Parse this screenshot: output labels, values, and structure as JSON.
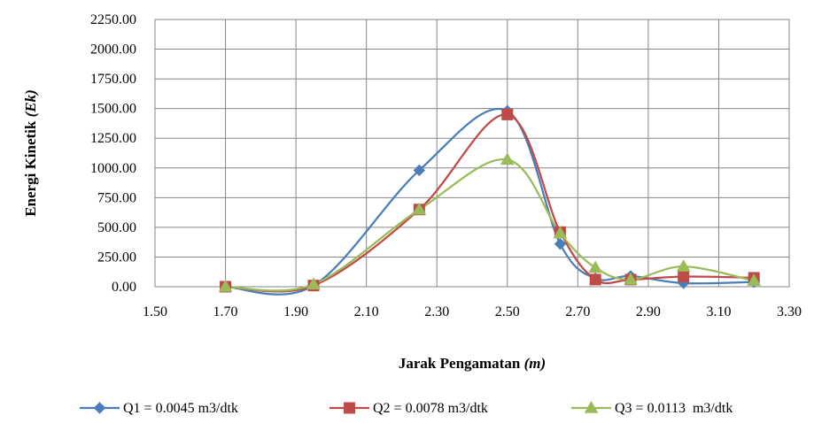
{
  "chart_data": {
    "type": "line",
    "xlabel": "Jarak Pengamatan",
    "xlabel_unit": "(m)",
    "ylabel": "Energi Kinetik",
    "ylabel_unit": "(Ek)",
    "xlim": [
      1.5,
      3.3
    ],
    "ylim": [
      0,
      2250
    ],
    "x_ticks": [
      "1.50",
      "1.70",
      "1.90",
      "2.10",
      "2.30",
      "2.50",
      "2.70",
      "2.90",
      "3.10",
      "3.30"
    ],
    "y_ticks": [
      "0.00",
      "250.00",
      "500.00",
      "750.00",
      "1000.00",
      "1250.00",
      "1500.00",
      "1750.00",
      "2000.00",
      "2250.00"
    ],
    "x_tick_values": [
      1.5,
      1.7,
      1.9,
      2.1,
      2.3,
      2.5,
      2.7,
      2.9,
      3.1,
      3.3
    ],
    "y_tick_values": [
      0,
      250,
      500,
      750,
      1000,
      1250,
      1500,
      1750,
      2000,
      2250
    ],
    "grid": true,
    "legend_position": "bottom",
    "series": [
      {
        "name": "Q1 = 0.0045 m3/dtk",
        "color": "#4a7ebb",
        "marker": "diamond",
        "x": [
          1.7,
          1.95,
          2.25,
          2.5,
          2.65,
          2.75,
          2.85,
          3.0,
          3.2
        ],
        "y": [
          0,
          10,
          980,
          1480,
          360,
          70,
          90,
          30,
          40
        ]
      },
      {
        "name": "Q2 = 0.0078 m3/dtk",
        "color": "#be4b48",
        "marker": "square",
        "x": [
          1.7,
          1.95,
          2.25,
          2.5,
          2.65,
          2.75,
          2.85,
          3.0,
          3.2
        ],
        "y": [
          0,
          10,
          650,
          1450,
          460,
          60,
          60,
          85,
          75
        ]
      },
      {
        "name": "Q3 = 0.0113  m3/dtk",
        "color": "#9bbb59",
        "marker": "triangle",
        "x": [
          1.7,
          1.95,
          2.25,
          2.5,
          2.65,
          2.75,
          2.85,
          3.0,
          3.2
        ],
        "y": [
          0,
          20,
          650,
          1070,
          450,
          160,
          60,
          170,
          50
        ]
      }
    ]
  }
}
